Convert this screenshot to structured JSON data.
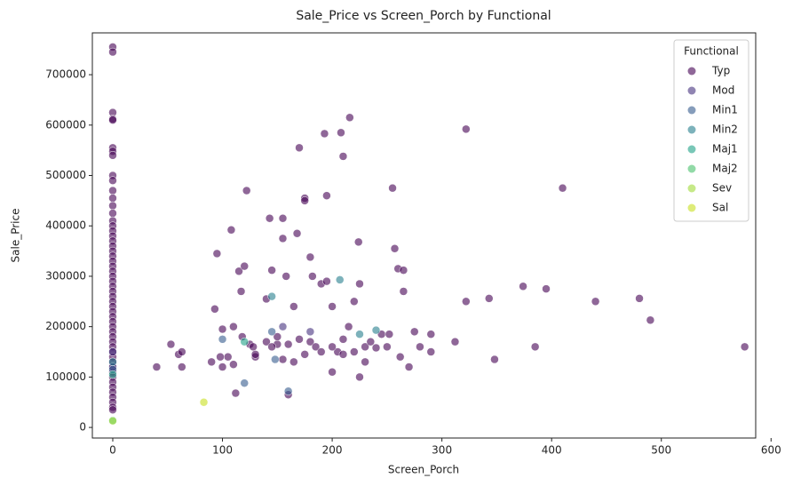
{
  "chart_data": {
    "type": "scatter",
    "title": "Sale_Price vs Screen_Porch by Functional",
    "x_label": "Screen_Porch",
    "y_label": "Sale_Price",
    "legend_title": "Functional",
    "legend_position": "upper right",
    "xlim": [
      -18.6,
      586
    ],
    "ylim": [
      -21000,
      783000
    ],
    "xticks": [
      0,
      100,
      200,
      300,
      400,
      500,
      600
    ],
    "yticks": [
      0,
      100000,
      200000,
      300000,
      400000,
      500000,
      600000,
      700000
    ],
    "series": [
      {
        "name": "Typ",
        "color": "#440154",
        "x": [
          0,
          0,
          0,
          0,
          0,
          0,
          0,
          0,
          0,
          0,
          0,
          0,
          0,
          0,
          0,
          0,
          0,
          0,
          0,
          0,
          0,
          0,
          0,
          0,
          0,
          0,
          0,
          0,
          0,
          0,
          0,
          0,
          0,
          0,
          0,
          0,
          0,
          0,
          0,
          0,
          0,
          0,
          0,
          0,
          0,
          0,
          0,
          0,
          0,
          0,
          0,
          0,
          0,
          40,
          53,
          60,
          63,
          63,
          90,
          95,
          93,
          100,
          108,
          110,
          112,
          115,
          117,
          120,
          122,
          125,
          130,
          140,
          143,
          145,
          150,
          155,
          155,
          158,
          160,
          165,
          168,
          170,
          175,
          175,
          180,
          182,
          190,
          193,
          195,
          195,
          200,
          200,
          205,
          208,
          210,
          216,
          215,
          220,
          224,
          225,
          225,
          230,
          240,
          255,
          257,
          260,
          265,
          265,
          270,
          275,
          290,
          290,
          312,
          322,
          322,
          343,
          348,
          374,
          385,
          395,
          410,
          440,
          480,
          490,
          576,
          180,
          185,
          170,
          150,
          140,
          130,
          100,
          105,
          118,
          160,
          210,
          220,
          230,
          245,
          250,
          262,
          280,
          200,
          190,
          175,
          165,
          155,
          145,
          128,
          110,
          98,
          210,
          235,
          252
        ],
        "y": [
          755000,
          745000,
          625000,
          612000,
          610000,
          555000,
          548000,
          540000,
          500000,
          490000,
          470000,
          455000,
          440000,
          425000,
          410000,
          400000,
          390000,
          380000,
          370000,
          360000,
          350000,
          340000,
          330000,
          320000,
          310000,
          300000,
          290000,
          280000,
          270000,
          260000,
          250000,
          240000,
          230000,
          220000,
          210000,
          200000,
          190000,
          180000,
          170000,
          160000,
          150000,
          140000,
          130000,
          120000,
          110000,
          100000,
          90000,
          80000,
          70000,
          60000,
          50000,
          40000,
          35000,
          120000,
          165000,
          145000,
          120000,
          150000,
          130000,
          345000,
          235000,
          195000,
          392000,
          200000,
          68000,
          310000,
          270000,
          320000,
          470000,
          165000,
          140000,
          255000,
          415000,
          312000,
          165000,
          415000,
          375000,
          300000,
          65000,
          240000,
          385000,
          555000,
          455000,
          450000,
          338000,
          300000,
          285000,
          583000,
          460000,
          290000,
          240000,
          110000,
          150000,
          585000,
          538000,
          615000,
          200000,
          250000,
          368000,
          285000,
          100000,
          130000,
          158000,
          475000,
          355000,
          315000,
          312000,
          270000,
          120000,
          190000,
          150000,
          185000,
          170000,
          592000,
          250000,
          256000,
          135000,
          280000,
          160000,
          275000,
          475000,
          250000,
          256000,
          213000,
          160000,
          170000,
          160000,
          175000,
          180000,
          170000,
          145000,
          120000,
          140000,
          180000,
          165000,
          175000,
          150000,
          160000,
          185000,
          160000,
          140000,
          160000,
          160000,
          150000,
          145000,
          130000,
          135000,
          160000,
          160000,
          125000,
          140000,
          145000,
          170000,
          185000
        ]
      },
      {
        "name": "Mod",
        "color": "#46327e",
        "x": [
          0,
          0,
          155,
          180
        ],
        "y": [
          150000,
          120000,
          200000,
          190000
        ]
      },
      {
        "name": "Min1",
        "color": "#365c8d",
        "x": [
          0,
          100,
          120,
          148,
          160,
          145
        ],
        "y": [
          115000,
          175000,
          88000,
          135000,
          72000,
          190000
        ]
      },
      {
        "name": "Min2",
        "color": "#277f8e",
        "x": [
          0,
          207,
          240,
          225,
          145
        ],
        "y": [
          130000,
          293000,
          193000,
          185000,
          260000
        ]
      },
      {
        "name": "Maj1",
        "color": "#1fa187",
        "x": [
          0,
          120
        ],
        "y": [
          105000,
          170000
        ]
      },
      {
        "name": "Maj2",
        "color": "#4ac16d",
        "x": [
          0
        ],
        "y": [
          14000
        ]
      },
      {
        "name": "Sev",
        "color": "#a0da39",
        "x": [
          0
        ],
        "y": [
          13000
        ]
      },
      {
        "name": "Sal",
        "color": "#c8e020",
        "x": [
          83
        ],
        "y": [
          50000
        ]
      }
    ]
  }
}
